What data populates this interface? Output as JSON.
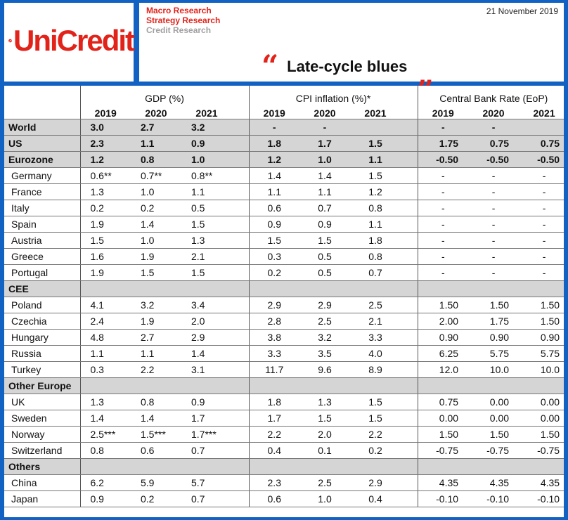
{
  "header": {
    "logo_text": "UniCredit",
    "lines": [
      "Macro Research",
      "Strategy Research",
      "Credit Research"
    ],
    "date": "21 November 2019",
    "title": "Late-cycle blues",
    "quote_open": "“",
    "quote_close": "„"
  },
  "table": {
    "groups": [
      "GDP (%)",
      "CPI inflation (%)*",
      "Central Bank Rate (EoP)"
    ],
    "years": [
      "2019",
      "2020",
      "2021"
    ],
    "rows": [
      {
        "name": "World",
        "gdp": [
          "3.0",
          "2.7",
          "3.2"
        ],
        "cpi": [
          "-",
          "-",
          ""
        ],
        "rate": [
          "-",
          "-",
          ""
        ]
      },
      {
        "name": "US",
        "gdp": [
          "2.3",
          "1.1",
          "0.9"
        ],
        "cpi": [
          "1.8",
          "1.7",
          "1.5"
        ],
        "rate": [
          "1.75",
          "0.75",
          "0.75"
        ]
      },
      {
        "name": "Eurozone",
        "gdp": [
          "1.2",
          "0.8",
          "1.0"
        ],
        "cpi": [
          "1.2",
          "1.0",
          "1.1"
        ],
        "rate": [
          "-0.50",
          "-0.50",
          "-0.50"
        ]
      },
      {
        "name": "Germany",
        "gdp": [
          "0.6**",
          "0.7**",
          "0.8**"
        ],
        "cpi": [
          "1.4",
          "1.4",
          "1.5"
        ],
        "rate": [
          "-",
          "-",
          "-"
        ]
      },
      {
        "name": "France",
        "gdp": [
          "1.3",
          "1.0",
          "1.1"
        ],
        "cpi": [
          "1.1",
          "1.1",
          "1.2"
        ],
        "rate": [
          "-",
          "-",
          "-"
        ]
      },
      {
        "name": "Italy",
        "gdp": [
          "0.2",
          "0.2",
          "0.5"
        ],
        "cpi": [
          "0.6",
          "0.7",
          "0.8"
        ],
        "rate": [
          "-",
          "-",
          "-"
        ]
      },
      {
        "name": "Spain",
        "gdp": [
          "1.9",
          "1.4",
          "1.5"
        ],
        "cpi": [
          "0.9",
          "0.9",
          "1.1"
        ],
        "rate": [
          "-",
          "-",
          "-"
        ]
      },
      {
        "name": "Austria",
        "gdp": [
          "1.5",
          "1.0",
          "1.3"
        ],
        "cpi": [
          "1.5",
          "1.5",
          "1.8"
        ],
        "rate": [
          "-",
          "-",
          "-"
        ]
      },
      {
        "name": "Greece",
        "gdp": [
          "1.6",
          "1.9",
          "2.1"
        ],
        "cpi": [
          "0.3",
          "0.5",
          "0.8"
        ],
        "rate": [
          "-",
          "-",
          "-"
        ]
      },
      {
        "name": "Portugal",
        "gdp": [
          "1.9",
          "1.5",
          "1.5"
        ],
        "cpi": [
          "0.2",
          "0.5",
          "0.7"
        ],
        "rate": [
          "-",
          "-",
          "-"
        ]
      },
      {
        "name": "CEE"
      },
      {
        "name": "Poland",
        "gdp": [
          "4.1",
          "3.2",
          "3.4"
        ],
        "cpi": [
          "2.9",
          "2.9",
          "2.5"
        ],
        "rate": [
          "1.50",
          "1.50",
          "1.50"
        ]
      },
      {
        "name": "Czechia",
        "gdp": [
          "2.4",
          "1.9",
          "2.0"
        ],
        "cpi": [
          "2.8",
          "2.5",
          "2.1"
        ],
        "rate": [
          "2.00",
          "1.75",
          "1.50"
        ]
      },
      {
        "name": "Hungary",
        "gdp": [
          "4.8",
          "2.7",
          "2.9"
        ],
        "cpi": [
          "3.8",
          "3.2",
          "3.3"
        ],
        "rate": [
          "0.90",
          "0.90",
          "0.90"
        ]
      },
      {
        "name": "Russia",
        "gdp": [
          "1.1",
          "1.1",
          "1.4"
        ],
        "cpi": [
          "3.3",
          "3.5",
          "4.0"
        ],
        "rate": [
          "6.25",
          "5.75",
          "5.75"
        ]
      },
      {
        "name": "Turkey",
        "gdp": [
          "0.3",
          "2.2",
          "3.1"
        ],
        "cpi": [
          "11.7",
          "9.6",
          "8.9"
        ],
        "rate": [
          "12.0",
          "10.0",
          "10.0"
        ]
      },
      {
        "name": "Other Europe"
      },
      {
        "name": "UK",
        "gdp": [
          "1.3",
          "0.8",
          "0.9"
        ],
        "cpi": [
          "1.8",
          "1.3",
          "1.5"
        ],
        "rate": [
          "0.75",
          "0.00",
          "0.00"
        ]
      },
      {
        "name": "Sweden",
        "gdp": [
          "1.4",
          "1.4",
          "1.7"
        ],
        "cpi": [
          "1.7",
          "1.5",
          "1.5"
        ],
        "rate": [
          "0.00",
          "0.00",
          "0.00"
        ]
      },
      {
        "name": "Norway",
        "gdp": [
          "2.5***",
          "1.5***",
          "1.7***"
        ],
        "cpi": [
          "2.2",
          "2.0",
          "2.2"
        ],
        "rate": [
          "1.50",
          "1.50",
          "1.50"
        ]
      },
      {
        "name": "Switzerland",
        "gdp": [
          "0.8",
          "0.6",
          "0.7"
        ],
        "cpi": [
          "0.4",
          "0.1",
          "0.2"
        ],
        "rate": [
          "-0.75",
          "-0.75",
          "-0.75"
        ]
      },
      {
        "name": "Others"
      },
      {
        "name": "China",
        "gdp": [
          "6.2",
          "5.9",
          "5.7"
        ],
        "cpi": [
          "2.3",
          "2.5",
          "2.9"
        ],
        "rate": [
          "4.35",
          "4.35",
          "4.35"
        ]
      },
      {
        "name": "Japan",
        "gdp": [
          "0.9",
          "0.2",
          "0.7"
        ],
        "cpi": [
          "0.6",
          "1.0",
          "0.4"
        ],
        "rate": [
          "-0.10",
          "-0.10",
          "-0.10"
        ]
      }
    ]
  },
  "colors": {
    "frame": "#1262c4",
    "accent_red": "#e2231a",
    "shade": "#d5d5d5"
  }
}
